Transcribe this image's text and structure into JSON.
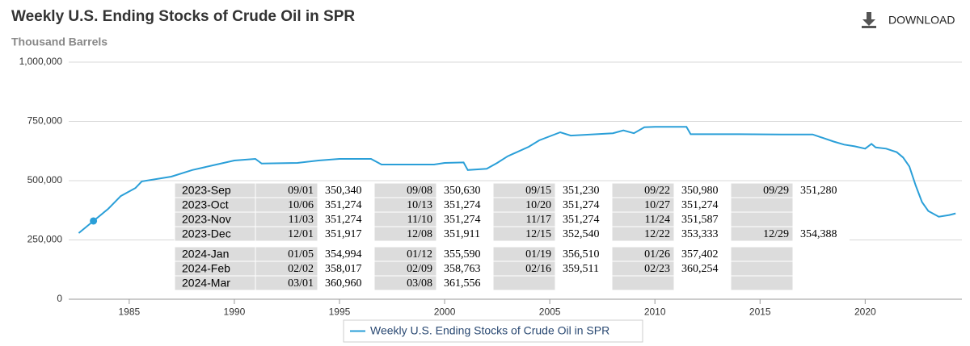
{
  "chart_data": {
    "type": "line",
    "title": "Weekly U.S. Ending Stocks of Crude Oil in SPR",
    "subtitle": "Thousand Barrels",
    "download": "DOWNLOAD",
    "xlim": [
      1982.2,
      2024.6
    ],
    "xticks": [
      1985,
      1990,
      1995,
      2000,
      2005,
      2010,
      2015,
      2020
    ],
    "ylim": [
      0,
      1000000
    ],
    "yticks": [
      0,
      {
        "value": 250000,
        "label": "250,000"
      },
      {
        "value": 500000,
        "label": "500,000"
      },
      {
        "value": 750000,
        "label": "750,000"
      },
      {
        "value": 1000000,
        "label": "1,000,000"
      }
    ],
    "grid": true,
    "series": [
      {
        "name": "Weekly U.S. Ending Stocks of Crude Oil in SPR",
        "color": "#2a9fd8",
        "x": [
          1982.6,
          1983.3,
          1984.0,
          1984.6,
          1985.3,
          1985.6,
          1987,
          1988,
          1989,
          1990,
          1991,
          1991.3,
          1993,
          1994,
          1995,
          1996.5,
          1997,
          1999.5,
          2000,
          2000.9,
          2001.1,
          2002,
          2002.5,
          2003,
          2004,
          2004.5,
          2005.5,
          2006,
          2008,
          2008.5,
          2009,
          2009.5,
          2010,
          2011.5,
          2011.7,
          2014,
          2016,
          2017.5,
          2018,
          2018.5,
          2019,
          2019.5,
          2020,
          2020.3,
          2020.5,
          2021,
          2021.5,
          2021.8,
          2022.1,
          2022.4,
          2022.7,
          2023,
          2023.5,
          2024,
          2024.3
        ],
        "values": [
          279000,
          330000,
          381000,
          435000,
          469000,
          497000,
          517000,
          545000,
          565000,
          585000,
          592000,
          572000,
          575000,
          585000,
          592000,
          592000,
          568000,
          568000,
          575000,
          577000,
          545000,
          550000,
          575000,
          603000,
          643000,
          670000,
          704000,
          690000,
          700000,
          712000,
          700000,
          725000,
          727000,
          727000,
          696000,
          696000,
          695000,
          695000,
          680000,
          665000,
          652000,
          645000,
          635000,
          655000,
          640000,
          635000,
          620000,
          598000,
          560000,
          480000,
          410000,
          372000,
          348000,
          355000,
          362000
        ]
      }
    ],
    "highlight_index": 1,
    "tooltip_table": {
      "groups": [
        {
          "rows": [
            {
              "month": "2023-Sep",
              "cells": [
                [
                  "09/01",
                  "350,340"
                ],
                [
                  "09/08",
                  "350,630"
                ],
                [
                  "09/15",
                  "351,230"
                ],
                [
                  "09/22",
                  "350,980"
                ],
                [
                  "09/29",
                  "351,280"
                ]
              ]
            },
            {
              "month": "2023-Oct",
              "cells": [
                [
                  "10/06",
                  "351,274"
                ],
                [
                  "10/13",
                  "351,274"
                ],
                [
                  "10/20",
                  "351,274"
                ],
                [
                  "10/27",
                  "351,274"
                ],
                null
              ]
            },
            {
              "month": "2023-Nov",
              "cells": [
                [
                  "11/03",
                  "351,274"
                ],
                [
                  "11/10",
                  "351,274"
                ],
                [
                  "11/17",
                  "351,274"
                ],
                [
                  "11/24",
                  "351,587"
                ],
                null
              ]
            },
            {
              "month": "2023-Dec",
              "cells": [
                [
                  "12/01",
                  "351,917"
                ],
                [
                  "12/08",
                  "351,911"
                ],
                [
                  "12/15",
                  "352,540"
                ],
                [
                  "12/22",
                  "353,333"
                ],
                [
                  "12/29",
                  "354,388"
                ]
              ]
            }
          ]
        },
        {
          "rows": [
            {
              "month": "2024-Jan",
              "cells": [
                [
                  "01/05",
                  "354,994"
                ],
                [
                  "01/12",
                  "355,590"
                ],
                [
                  "01/19",
                  "356,510"
                ],
                [
                  "01/26",
                  "357,402"
                ],
                null
              ]
            },
            {
              "month": "2024-Feb",
              "cells": [
                [
                  "02/02",
                  "358,017"
                ],
                [
                  "02/09",
                  "358,763"
                ],
                [
                  "02/16",
                  "359,511"
                ],
                [
                  "02/23",
                  "360,254"
                ],
                null
              ]
            },
            {
              "month": "2024-Mar",
              "cells": [
                [
                  "03/01",
                  "360,960"
                ],
                [
                  "03/08",
                  "361,556"
                ],
                null,
                null,
                null
              ]
            }
          ]
        }
      ]
    }
  }
}
